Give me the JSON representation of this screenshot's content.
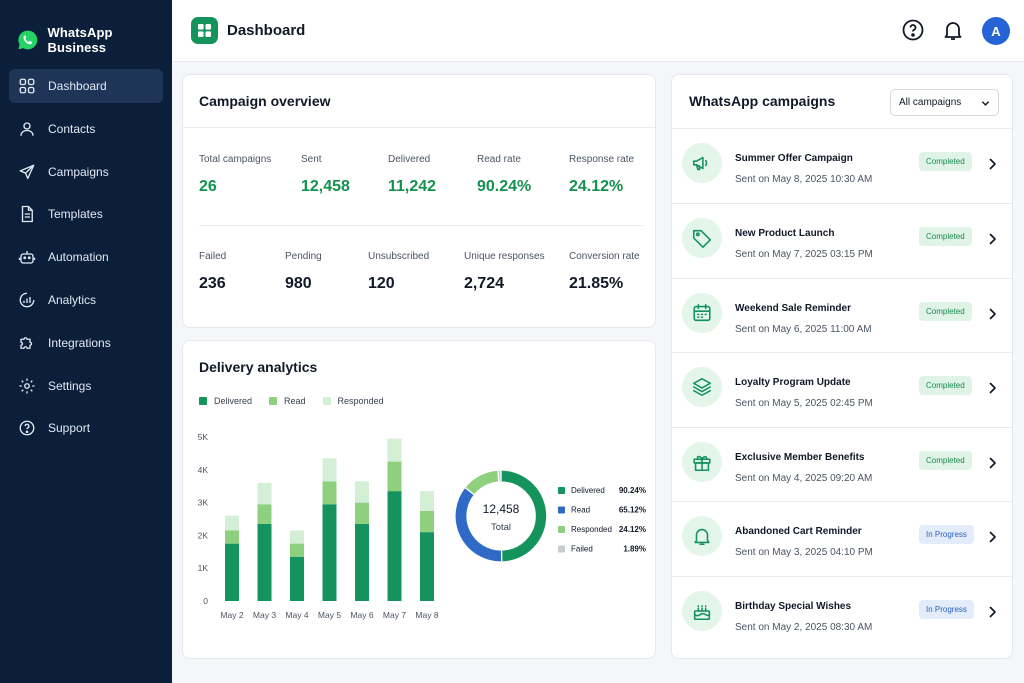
{
  "brand": {
    "name": "WhatsApp Business",
    "logo_icon": "whatsapp-logo"
  },
  "sidebar": {
    "items": [
      {
        "label": "Dashboard",
        "icon": "grid-icon",
        "active": true
      },
      {
        "label": "Contacts",
        "icon": "user-icon"
      },
      {
        "label": "Campaigns",
        "icon": "send-icon"
      },
      {
        "label": "Templates",
        "icon": "document-icon"
      },
      {
        "label": "Automation",
        "icon": "robot-icon"
      },
      {
        "label": "Analytics",
        "icon": "analytics-icon"
      },
      {
        "label": "Integrations",
        "icon": "puzzle-icon"
      },
      {
        "label": "Settings",
        "icon": "gear-icon"
      },
      {
        "label": "Support",
        "icon": "help-icon"
      }
    ]
  },
  "header": {
    "title": "Dashboard",
    "avatar_initial": "A"
  },
  "overview": {
    "title": "Campaign overview",
    "row1": [
      {
        "label": "Total campaigns",
        "value": "26"
      },
      {
        "label": "Sent",
        "value": "12,458"
      },
      {
        "label": "Delivered",
        "value": "11,242"
      },
      {
        "label": "Read rate",
        "value": "90.24%"
      },
      {
        "label": "Response rate",
        "value": "24.12%"
      }
    ],
    "row2": [
      {
        "label": "Failed",
        "value": "236"
      },
      {
        "label": "Pending",
        "value": "980"
      },
      {
        "label": "Unsubscribed",
        "value": "120"
      },
      {
        "label": "Unique responses",
        "value": "2,724"
      },
      {
        "label": "Conversion rate",
        "value": "21.85%"
      }
    ]
  },
  "analytics": {
    "title": "Delivery analytics",
    "legend": [
      "Delivered",
      "Read",
      "Responded"
    ]
  },
  "colors": {
    "delivered": "#15935d",
    "read": "#8fd07f",
    "responded": "#d3efd6",
    "donut_read": "#2f6bc6",
    "failed": "#c7ccd3"
  },
  "chart_data": [
    {
      "type": "bar",
      "stacked": true,
      "categories": [
        "May 2",
        "May 3",
        "May 4",
        "May 5",
        "May 6",
        "May 7",
        "May 8"
      ],
      "series": [
        {
          "name": "Delivered",
          "values": [
            1750,
            2350,
            1350,
            2950,
            2350,
            3350,
            2100
          ]
        },
        {
          "name": "Read",
          "values": [
            400,
            600,
            400,
            700,
            650,
            900,
            650
          ]
        },
        {
          "name": "Responded",
          "values": [
            450,
            650,
            400,
            700,
            650,
            700,
            600
          ]
        }
      ],
      "ytick_labels": [
        "0",
        "1K",
        "2K",
        "3K",
        "4K",
        "5K"
      ],
      "ylim": [
        0,
        5000
      ],
      "legend": "top-left",
      "grid": false
    },
    {
      "type": "pie",
      "donut": true,
      "center_value": "12,458",
      "center_label": "Total",
      "slices": [
        {
          "name": "Delivered",
          "value": 90.24,
          "label": "90.24%"
        },
        {
          "name": "Read",
          "value": 65.12,
          "label": "65.12%"
        },
        {
          "name": "Responded",
          "value": 24.12,
          "label": "24.12%"
        },
        {
          "name": "Failed",
          "value": 1.89,
          "label": "1.89%"
        }
      ]
    }
  ],
  "campaigns": {
    "title": "WhatsApp campaigns",
    "filter": "All campaigns",
    "items": [
      {
        "name": "Summer Offer Campaign",
        "date": "Sent on May 8, 2025 10:30 AM",
        "status": "Completed",
        "icon": "megaphone-icon"
      },
      {
        "name": "New Product Launch",
        "date": "Sent on May 7, 2025 03:15 PM",
        "status": "Completed",
        "icon": "tag-icon"
      },
      {
        "name": "Weekend Sale Reminder",
        "date": "Sent on May 6, 2025 11:00 AM",
        "status": "Completed",
        "icon": "calendar-icon"
      },
      {
        "name": "Loyalty Program Update",
        "date": "Sent on May 5, 2025 02:45 PM",
        "status": "Completed",
        "icon": "layers-icon"
      },
      {
        "name": "Exclusive Member Benefits",
        "date": "Sent on May 4, 2025 09:20 AM",
        "status": "Completed",
        "icon": "gift-icon"
      },
      {
        "name": "Abandoned Cart Reminder",
        "date": "Sent on May 3, 2025 04:10 PM",
        "status": "In Progress",
        "icon": "bell-icon"
      },
      {
        "name": "Birthday Special Wishes",
        "date": "Sent on May 2, 2025 08:30 AM",
        "status": "In Progress",
        "icon": "cake-icon"
      }
    ]
  }
}
